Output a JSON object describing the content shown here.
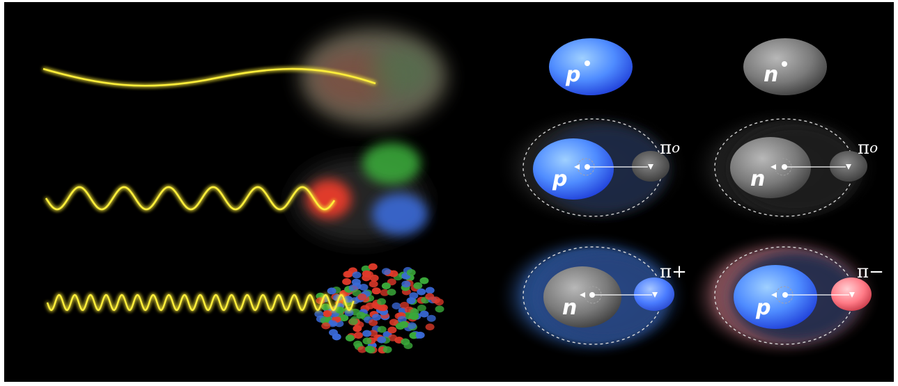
{
  "colors": {
    "background": "#000000",
    "photon": "#ffef3a",
    "proton": "#3d6bff",
    "neutron": "#707070",
    "pion_plus": "#3a78ff",
    "pion_minus": "#ff5a6a",
    "quark_red": "#e03a2a",
    "quark_green": "#3aa83a",
    "quark_blue": "#3a6ad8"
  },
  "labels": {
    "proton": "p",
    "neutron": "n",
    "pi_zero": "πo",
    "pi_plus": "π+",
    "pi_minus": "π−"
  },
  "rows": [
    {
      "name": "long-wavelength",
      "photon_wavelength": "long",
      "target": "nucleon-blur"
    },
    {
      "name": "medium-wavelength",
      "photon_wavelength": "medium",
      "target": "three-quarks"
    },
    {
      "name": "short-wavelength",
      "photon_wavelength": "short",
      "target": "quark-sea"
    }
  ],
  "icons": [
    "proton-sphere-icon",
    "neutron-sphere-icon",
    "pion-cloud-icon",
    "photon-wave-icon",
    "spin-arrow-icon"
  ]
}
